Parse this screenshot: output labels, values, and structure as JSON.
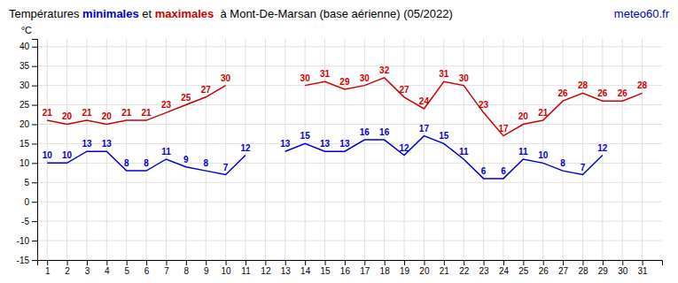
{
  "chart_data": {
    "type": "line",
    "title": "Températures minimales et maximales  à Mont-De-Marsan (base aérienne) (05/2022)",
    "ylabel": "°C",
    "annotations": [
      {
        "text": "meteo60.fr",
        "color": "#0000bb"
      }
    ],
    "x": [
      1,
      2,
      3,
      4,
      5,
      6,
      7,
      8,
      9,
      10,
      11,
      12,
      13,
      14,
      15,
      16,
      17,
      18,
      19,
      20,
      21,
      22,
      23,
      24,
      25,
      26,
      27,
      28,
      29,
      30,
      31
    ],
    "series": [
      {
        "name": "minimales",
        "color": "#0000cc",
        "values": [
          10,
          10,
          13,
          13,
          8,
          8,
          11,
          9,
          8,
          7,
          12,
          null,
          13,
          15,
          13,
          13,
          16,
          16,
          12,
          17,
          15,
          11,
          6,
          6,
          11,
          10,
          8,
          7,
          12,
          null,
          null
        ]
      },
      {
        "name": "maximales",
        "color": "#cc0000",
        "values": [
          21,
          20,
          21,
          20,
          21,
          21,
          23,
          25,
          27,
          30,
          null,
          null,
          null,
          30,
          31,
          29,
          30,
          32,
          27,
          24,
          31,
          30,
          23,
          17,
          20,
          21,
          26,
          28,
          26,
          26,
          28
        ]
      }
    ],
    "xlim": [
      0.5,
      32
    ],
    "xticks": [
      1,
      2,
      3,
      4,
      5,
      6,
      7,
      8,
      9,
      10,
      11,
      12,
      13,
      14,
      15,
      16,
      17,
      18,
      19,
      20,
      21,
      22,
      23,
      24,
      25,
      26,
      27,
      28,
      29,
      30,
      31
    ],
    "ylim": [
      -15,
      42
    ],
    "yticks": [
      -15,
      -10,
      -5,
      0,
      5,
      10,
      15,
      20,
      25,
      30,
      35,
      40
    ],
    "grid": true,
    "data_labels": true
  }
}
